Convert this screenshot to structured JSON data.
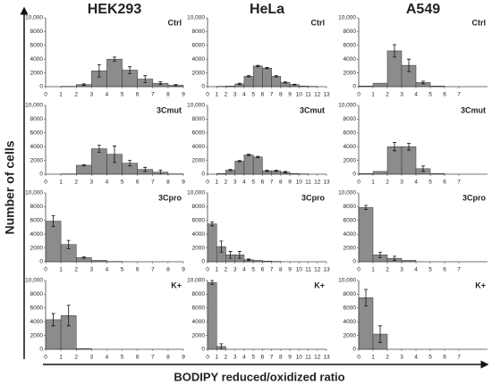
{
  "column_titles": [
    "HEK293",
    "HeLa",
    "A549"
  ],
  "y_label": "Number of cells",
  "x_label": "BODIPY reduced/oxidized ratio",
  "chart_data": [
    {
      "type": "histogram",
      "label": "Ctrl",
      "bins": [
        0,
        1,
        2,
        3,
        4,
        5,
        6,
        7,
        8,
        9
      ],
      "values": [
        0,
        50,
        300,
        2300,
        4000,
        2400,
        1100,
        500,
        200
      ],
      "errors": [
        0,
        0,
        100,
        900,
        300,
        500,
        500,
        200,
        100
      ],
      "xlim": [
        0,
        9
      ],
      "xticks": [
        0,
        1,
        2,
        3,
        4,
        5,
        6,
        7,
        8,
        9
      ],
      "ylim": [
        0,
        10000
      ],
      "yticks": [
        0,
        2000,
        4000,
        6000,
        8000,
        {
          "value": 10000,
          "label": "10,000"
        }
      ],
      "color": "#8c8c8c"
    },
    {
      "type": "histogram",
      "label": "Ctrl",
      "bins": [
        0,
        1,
        2,
        3,
        4,
        5,
        6,
        7,
        8,
        9,
        10,
        11,
        12,
        13
      ],
      "values": [
        0,
        50,
        100,
        400,
        1500,
        3000,
        2700,
        1500,
        600,
        300,
        100,
        50,
        0
      ],
      "errors": [
        0,
        0,
        0,
        100,
        100,
        100,
        100,
        100,
        100,
        50,
        0,
        0,
        0
      ],
      "xlim": [
        0,
        13
      ],
      "xticks": [
        0,
        1,
        2,
        3,
        4,
        5,
        6,
        7,
        8,
        9,
        10,
        11,
        12,
        13
      ],
      "ylim": [
        0,
        10000
      ],
      "yticks": [
        0,
        2000,
        4000,
        6000,
        8000,
        {
          "value": 10000,
          "label": "10,000"
        }
      ],
      "color": "#8c8c8c"
    },
    {
      "type": "histogram",
      "label": "Ctrl",
      "bins": [
        0,
        1,
        2,
        3,
        4,
        5,
        6,
        7
      ],
      "values": [
        100,
        500,
        5200,
        3100,
        600,
        100,
        0
      ],
      "errors": [
        0,
        0,
        900,
        900,
        200,
        0,
        0
      ],
      "xlim": [
        0,
        9
      ],
      "xticks": [
        0,
        1,
        2,
        3,
        4,
        5,
        6,
        7
      ],
      "ylim": [
        0,
        10000
      ],
      "yticks": [
        0,
        2000,
        4000,
        6000,
        8000,
        {
          "value": 10000,
          "label": "10,000"
        }
      ],
      "color": "#8c8c8c"
    },
    {
      "type": "histogram",
      "label": "3Cmut",
      "bins": [
        0,
        1,
        2,
        3,
        4,
        5,
        6,
        7,
        8,
        9
      ],
      "values": [
        0,
        50,
        1300,
        3700,
        2900,
        1600,
        700,
        300,
        50
      ],
      "errors": [
        0,
        0,
        100,
        500,
        1200,
        400,
        300,
        300,
        0
      ],
      "xlim": [
        0,
        9
      ],
      "xticks": [
        0,
        1,
        2,
        3,
        4,
        5,
        6,
        7,
        8,
        9
      ],
      "ylim": [
        0,
        10000
      ],
      "yticks": [
        0,
        2000,
        4000,
        6000,
        8000,
        {
          "value": 10000,
          "label": "10,000"
        }
      ],
      "color": "#8c8c8c"
    },
    {
      "type": "histogram",
      "label": "3Cmut",
      "bins": [
        0,
        1,
        2,
        3,
        4,
        5,
        6,
        7,
        8,
        9,
        10,
        11,
        12,
        13
      ],
      "values": [
        0,
        100,
        600,
        1900,
        2800,
        2500,
        500,
        500,
        300,
        100,
        50,
        0,
        0
      ],
      "errors": [
        0,
        0,
        100,
        100,
        100,
        100,
        100,
        100,
        100,
        0,
        0,
        0,
        0
      ],
      "xlim": [
        0,
        13
      ],
      "xticks": [
        0,
        1,
        2,
        3,
        4,
        5,
        6,
        7,
        8,
        9,
        10,
        11,
        12,
        13
      ],
      "ylim": [
        0,
        10000
      ],
      "yticks": [
        0,
        2000,
        4000,
        6000,
        8000,
        {
          "value": 10000,
          "label": "10,000"
        }
      ],
      "color": "#8c8c8c"
    },
    {
      "type": "histogram",
      "label": "3Cmut",
      "bins": [
        0,
        1,
        2,
        3,
        4,
        5,
        6,
        7
      ],
      "values": [
        100,
        400,
        4000,
        4000,
        800,
        100,
        0
      ],
      "errors": [
        0,
        0,
        600,
        500,
        400,
        0,
        0
      ],
      "xlim": [
        0,
        9
      ],
      "xticks": [
        0,
        1,
        2,
        3,
        4,
        5,
        6,
        7
      ],
      "ylim": [
        0,
        10000
      ],
      "yticks": [
        0,
        2000,
        4000,
        6000,
        8000,
        {
          "value": 10000,
          "label": "10,000"
        }
      ],
      "color": "#8c8c8c"
    },
    {
      "type": "histogram",
      "label": "3Cpro",
      "bins": [
        0,
        1,
        2,
        3,
        4,
        5,
        6,
        7,
        8,
        9
      ],
      "values": [
        5900,
        2500,
        600,
        200,
        50,
        0,
        0,
        0,
        0
      ],
      "errors": [
        800,
        600,
        100,
        0,
        0,
        0,
        0,
        0,
        0
      ],
      "xlim": [
        0,
        9
      ],
      "xticks": [
        0,
        1,
        2,
        3,
        4,
        5,
        6,
        7,
        8,
        9
      ],
      "ylim": [
        0,
        10000
      ],
      "yticks": [
        0,
        2000,
        4000,
        6000,
        8000,
        {
          "value": 10000,
          "label": "10,000"
        }
      ],
      "color": "#8c8c8c"
    },
    {
      "type": "histogram",
      "label": "3Cpro",
      "bins": [
        0,
        1,
        2,
        3,
        4,
        5,
        6,
        7,
        8,
        9,
        10,
        11,
        12,
        13
      ],
      "values": [
        5500,
        2200,
        1000,
        1000,
        300,
        200,
        100,
        50,
        0,
        0,
        0,
        0,
        0
      ],
      "errors": [
        300,
        800,
        500,
        500,
        100,
        0,
        0,
        0,
        0,
        0,
        0,
        0,
        0
      ],
      "xlim": [
        0,
        13
      ],
      "xticks": [
        0,
        1,
        2,
        3,
        4,
        5,
        6,
        7,
        8,
        9,
        10,
        11,
        12,
        13
      ],
      "ylim": [
        0,
        10000
      ],
      "yticks": [
        0,
        2000,
        4000,
        6000,
        8000,
        {
          "value": 10000,
          "label": "10,000"
        }
      ],
      "color": "#8c8c8c"
    },
    {
      "type": "histogram",
      "label": "3Cpro",
      "bins": [
        0,
        1,
        2,
        3,
        4,
        5,
        6,
        7
      ],
      "values": [
        7900,
        1000,
        500,
        200,
        0,
        0,
        0
      ],
      "errors": [
        300,
        400,
        300,
        0,
        0,
        0,
        0
      ],
      "xlim": [
        0,
        9
      ],
      "xticks": [
        0,
        1,
        2,
        3,
        4,
        5,
        6,
        7
      ],
      "ylim": [
        0,
        10000
      ],
      "yticks": [
        0,
        2000,
        4000,
        6000,
        8000,
        {
          "value": 10000,
          "label": "10,000"
        }
      ],
      "color": "#8c8c8c"
    },
    {
      "type": "histogram",
      "label": "K+",
      "bins": [
        0,
        1,
        2,
        3,
        4,
        5,
        6,
        7,
        8,
        9
      ],
      "values": [
        4300,
        4900,
        100,
        0,
        0,
        0,
        0,
        0,
        0
      ],
      "errors": [
        900,
        1500,
        0,
        0,
        0,
        0,
        0,
        0,
        0
      ],
      "xlim": [
        0,
        9
      ],
      "xticks": [
        0,
        1,
        2,
        3,
        4,
        5,
        6,
        7,
        8,
        9
      ],
      "ylim": [
        0,
        10000
      ],
      "yticks": [
        0,
        2000,
        4000,
        6000,
        8000,
        {
          "value": 10000,
          "label": "10,000"
        }
      ],
      "color": "#8c8c8c"
    },
    {
      "type": "histogram",
      "label": "K+",
      "bins": [
        0,
        1,
        2,
        3,
        4,
        5,
        6,
        7,
        8,
        9,
        10,
        11,
        12,
        13
      ],
      "values": [
        9700,
        400,
        0,
        0,
        0,
        0,
        0,
        0,
        0,
        0,
        0,
        0,
        0
      ],
      "errors": [
        300,
        400,
        0,
        0,
        0,
        0,
        0,
        0,
        0,
        0,
        0,
        0,
        0
      ],
      "xlim": [
        0,
        13
      ],
      "xticks": [
        0,
        1,
        2,
        3,
        4,
        5,
        6,
        7,
        8,
        9,
        10,
        11,
        12,
        13
      ],
      "ylim": [
        0,
        10000
      ],
      "yticks": [
        0,
        2000,
        4000,
        6000,
        8000,
        {
          "value": 10000,
          "label": "10,000"
        }
      ],
      "color": "#8c8c8c"
    },
    {
      "type": "histogram",
      "label": "K+",
      "bins": [
        0,
        1,
        2,
        3,
        4,
        5,
        6,
        7
      ],
      "values": [
        7500,
        2200,
        0,
        0,
        0,
        0,
        0
      ],
      "errors": [
        1200,
        1200,
        0,
        0,
        0,
        0,
        0
      ],
      "xlim": [
        0,
        9
      ],
      "xticks": [
        0,
        1,
        2,
        3,
        4,
        5,
        6,
        7
      ],
      "ylim": [
        0,
        10000
      ],
      "yticks": [
        0,
        2000,
        4000,
        6000,
        8000,
        {
          "value": 10000,
          "label": "10,000"
        }
      ],
      "color": "#8c8c8c"
    }
  ]
}
